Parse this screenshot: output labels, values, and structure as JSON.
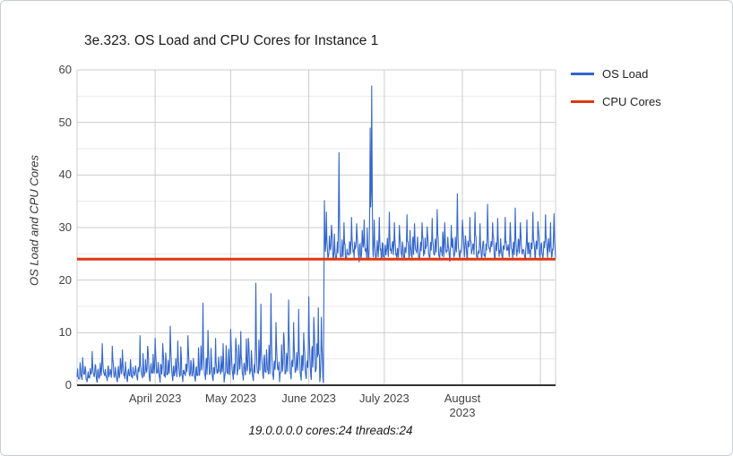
{
  "colors": {
    "background": "#ffffff",
    "frame_border": "#c9ced4",
    "grid_major": "#cccccc",
    "grid_minor": "#e9e9e9",
    "axis_baseline": "#333333",
    "tick_text": "#444444",
    "title_text": "#1a1a1a",
    "os_load": "#3366CC",
    "cpu_cores": "#DC3912"
  },
  "chart_data": {
    "type": "line",
    "title": "3e.323. OS Load and CPU Cores for Instance 1",
    "ylabel": "OS Load and CPU Cores",
    "xlabel_caption": "19.0.0.0.0 cores:24 threads:24",
    "legend_position": "right",
    "grid": true,
    "ylim": [
      0,
      60
    ],
    "ytick_step": 10,
    "yminor_step": 5,
    "ytick_labels": [
      "0",
      "10",
      "20",
      "30",
      "40",
      "50",
      "60"
    ],
    "x_start_date": "2023-03-01",
    "x_total_days": 190,
    "months": [
      {
        "day": 31,
        "lines": [
          "April 2023"
        ]
      },
      {
        "day": 61,
        "lines": [
          "May 2023"
        ]
      },
      {
        "day": 92,
        "lines": [
          "June 2023"
        ]
      },
      {
        "day": 122,
        "lines": [
          "July 2023"
        ]
      },
      {
        "day": 153,
        "lines": [
          "August",
          "2023"
        ]
      }
    ],
    "extra_gridline_days": [
      184
    ],
    "series": [
      {
        "name": "OS Load",
        "color": "#3366CC",
        "style": "noisy-line",
        "segments": [
          {
            "from_day": 0,
            "to_day": 98,
            "base_start": 1.6,
            "base_end": 3.0,
            "amp_start": 3.2,
            "amp_end": 8.5,
            "noise": 1.3,
            "floor": 0.3,
            "desc": "load ~0.5-16, below CPU core count"
          },
          {
            "from_day": 98,
            "to_day": 190,
            "base_start": 25.0,
            "base_end": 25.3,
            "amp_start": 4.2,
            "amp_end": 4.8,
            "noise": 2.4,
            "floor": 24.15,
            "desc": "step change in early June; load ~24-33, above CPU core count"
          }
        ],
        "spikes": [
          [
            6,
            6.5
          ],
          [
            10,
            8
          ],
          [
            14,
            7.5
          ],
          [
            18,
            6.8
          ],
          [
            25,
            9.5
          ],
          [
            28,
            7.5
          ],
          [
            31,
            9
          ],
          [
            34,
            8
          ],
          [
            37,
            11.3
          ],
          [
            40,
            8.5
          ],
          [
            44,
            9.5
          ],
          [
            50,
            15.7
          ],
          [
            52,
            10.5
          ],
          [
            55,
            9
          ],
          [
            58,
            8
          ],
          [
            61,
            10.7
          ],
          [
            63,
            9
          ],
          [
            65,
            10.3
          ],
          [
            68,
            9
          ],
          [
            71,
            19.5
          ],
          [
            73,
            15.5
          ],
          [
            77,
            17.5
          ],
          [
            79,
            12
          ],
          [
            82,
            10
          ],
          [
            84,
            16.3
          ],
          [
            86,
            12
          ],
          [
            88,
            14.5
          ],
          [
            90,
            10
          ],
          [
            92,
            16.9
          ],
          [
            94,
            13
          ],
          [
            95.8,
            14.8
          ],
          [
            97,
            13
          ],
          [
            98.2,
            35.2
          ],
          [
            99,
            33
          ],
          [
            101,
            30.5
          ],
          [
            104,
            44.3
          ],
          [
            106,
            31
          ],
          [
            109,
            32
          ],
          [
            111,
            30.8
          ],
          [
            114,
            31.5
          ],
          [
            116.4,
            49
          ],
          [
            117,
            57
          ],
          [
            118,
            31.5
          ],
          [
            120,
            32
          ],
          [
            124,
            33
          ],
          [
            126,
            31
          ],
          [
            128,
            30.5
          ],
          [
            131,
            32.5
          ],
          [
            134,
            30.8
          ],
          [
            137,
            31
          ],
          [
            139,
            30.2
          ],
          [
            141,
            31.8
          ],
          [
            143,
            33.5
          ],
          [
            146,
            31
          ],
          [
            148.6,
            30.5
          ],
          [
            151,
            36.5
          ],
          [
            153,
            31.5
          ],
          [
            156,
            32
          ],
          [
            158,
            33
          ],
          [
            160,
            30.8
          ],
          [
            163,
            34.5
          ],
          [
            165,
            31
          ],
          [
            167,
            31.8
          ],
          [
            170,
            32
          ],
          [
            172,
            31
          ],
          [
            174,
            33.8
          ],
          [
            176,
            31
          ],
          [
            178.6,
            31.5
          ],
          [
            181,
            33
          ],
          [
            183,
            31.2
          ],
          [
            186,
            32.5
          ],
          [
            188,
            31
          ],
          [
            189.4,
            32.7
          ]
        ],
        "dips": [
          [
            4,
            0.6
          ],
          [
            8,
            0.5
          ],
          [
            12,
            0.8
          ],
          [
            16,
            0.6
          ],
          [
            20,
            0.6
          ],
          [
            24,
            0.9
          ],
          [
            29,
            0.7
          ],
          [
            33,
            0.5
          ],
          [
            38,
            0.8
          ],
          [
            42,
            0.6
          ],
          [
            47,
            0.7
          ],
          [
            51,
            1
          ],
          [
            54,
            0.8
          ],
          [
            58.4,
            0.5
          ],
          [
            62,
            1
          ],
          [
            66,
            0.9
          ],
          [
            70,
            0.8
          ],
          [
            74,
            1.2
          ],
          [
            78,
            1
          ],
          [
            80.4,
            0.6
          ],
          [
            85,
            1.1
          ],
          [
            89,
            0.9
          ],
          [
            91,
            1.2
          ],
          [
            93,
            1
          ],
          [
            96.4,
            0.6
          ],
          [
            97.8,
            0.4
          ],
          [
            99.6,
            24.2
          ],
          [
            103,
            24.3
          ],
          [
            107,
            24.2
          ],
          [
            112,
            23.4
          ],
          [
            118.6,
            24.1
          ],
          [
            122,
            24.2
          ],
          [
            127,
            23.8
          ],
          [
            130,
            24.2
          ],
          [
            133,
            24.3
          ],
          [
            136,
            24.1
          ],
          [
            140,
            24
          ],
          [
            144,
            24.3
          ],
          [
            148,
            23.5
          ],
          [
            152,
            24.2
          ],
          [
            155,
            24
          ],
          [
            159,
            24.2
          ],
          [
            162,
            24.3
          ],
          [
            166,
            23.8
          ],
          [
            169,
            24.1
          ],
          [
            173,
            24.2
          ],
          [
            178,
            24
          ],
          [
            182,
            24.2
          ],
          [
            185,
            24.1
          ],
          [
            188.4,
            24.3
          ]
        ]
      },
      {
        "name": "CPU Cores",
        "color": "#DC3912",
        "style": "hline",
        "value": 24
      }
    ]
  }
}
